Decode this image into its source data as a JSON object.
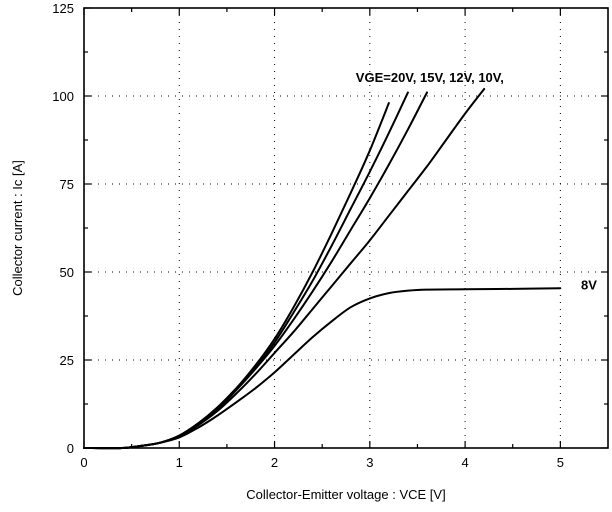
{
  "chart_data": {
    "type": "line",
    "xlabel": "Collector-Emitter  voltage  :  VCE [V]",
    "ylabel": "Collector  current  :  Ic [A]",
    "xlim": [
      0,
      5.5
    ],
    "ylim": [
      0,
      125
    ],
    "x_ticks": [
      "0",
      "1",
      "2",
      "3",
      "4",
      "5"
    ],
    "y_ticks": [
      "0",
      "25",
      "50",
      "75",
      "100",
      "125"
    ],
    "grid": true,
    "annotations": [
      {
        "text": "VGE=20V, 15V, 12V, 10V,",
        "x": 3.63,
        "y": 104
      },
      {
        "text": "8V",
        "x": 5.3,
        "y": 45
      }
    ],
    "series": [
      {
        "points": [
          [
            0,
            0
          ],
          [
            0.4,
            0
          ],
          [
            0.6,
            0.6
          ],
          [
            0.8,
            1.5
          ],
          [
            1.0,
            3.5
          ],
          [
            1.2,
            7
          ],
          [
            1.4,
            11.5
          ],
          [
            1.6,
            17
          ],
          [
            1.8,
            23.5
          ],
          [
            2.0,
            31
          ],
          [
            2.2,
            40
          ],
          [
            2.4,
            50
          ],
          [
            2.6,
            61
          ],
          [
            2.8,
            72.5
          ],
          [
            3.0,
            84.5
          ],
          [
            3.2,
            98
          ]
        ]
      },
      {
        "points": [
          [
            0,
            0
          ],
          [
            0.4,
            0
          ],
          [
            0.6,
            0.6
          ],
          [
            0.8,
            1.5
          ],
          [
            1.0,
            3.5
          ],
          [
            1.2,
            7
          ],
          [
            1.4,
            11.5
          ],
          [
            1.6,
            17
          ],
          [
            1.8,
            23
          ],
          [
            2.0,
            30
          ],
          [
            2.2,
            38.5
          ],
          [
            2.4,
            47.5
          ],
          [
            2.6,
            57.5
          ],
          [
            2.8,
            68
          ],
          [
            3.0,
            78.5
          ],
          [
            3.2,
            89.5
          ],
          [
            3.4,
            101
          ]
        ]
      },
      {
        "points": [
          [
            0,
            0
          ],
          [
            0.4,
            0
          ],
          [
            0.6,
            0.6
          ],
          [
            0.8,
            1.5
          ],
          [
            1.0,
            3.5
          ],
          [
            1.2,
            7
          ],
          [
            1.4,
            11
          ],
          [
            1.6,
            16.5
          ],
          [
            1.8,
            22.5
          ],
          [
            2.0,
            29
          ],
          [
            2.2,
            36.5
          ],
          [
            2.4,
            44.5
          ],
          [
            2.6,
            53
          ],
          [
            2.8,
            62
          ],
          [
            3.0,
            71
          ],
          [
            3.2,
            80.5
          ],
          [
            3.4,
            90.5
          ],
          [
            3.6,
            101
          ]
        ]
      },
      {
        "points": [
          [
            0,
            0
          ],
          [
            0.4,
            0
          ],
          [
            0.6,
            0.6
          ],
          [
            0.8,
            1.5
          ],
          [
            1.0,
            3.3
          ],
          [
            1.2,
            6.5
          ],
          [
            1.4,
            10.5
          ],
          [
            1.6,
            15.5
          ],
          [
            1.8,
            21
          ],
          [
            2.0,
            27
          ],
          [
            2.2,
            33
          ],
          [
            2.4,
            39.5
          ],
          [
            2.6,
            46
          ],
          [
            2.8,
            52.5
          ],
          [
            3.0,
            59
          ],
          [
            3.2,
            66
          ],
          [
            3.4,
            73
          ],
          [
            3.6,
            80
          ],
          [
            3.8,
            87.5
          ],
          [
            4.0,
            95
          ],
          [
            4.2,
            102
          ]
        ]
      },
      {
        "points": [
          [
            0,
            0
          ],
          [
            0.4,
            0
          ],
          [
            0.6,
            0.6
          ],
          [
            0.8,
            1.5
          ],
          [
            1.0,
            3.0
          ],
          [
            1.2,
            5.8
          ],
          [
            1.4,
            9.2
          ],
          [
            1.6,
            13
          ],
          [
            1.8,
            17
          ],
          [
            2.0,
            21.5
          ],
          [
            2.2,
            26.5
          ],
          [
            2.4,
            31.5
          ],
          [
            2.6,
            36
          ],
          [
            2.8,
            40
          ],
          [
            3.0,
            42.5
          ],
          [
            3.2,
            44
          ],
          [
            3.4,
            44.7
          ],
          [
            3.6,
            45
          ],
          [
            4.0,
            45.1
          ],
          [
            4.5,
            45.2
          ],
          [
            5.0,
            45.4
          ]
        ]
      }
    ]
  }
}
